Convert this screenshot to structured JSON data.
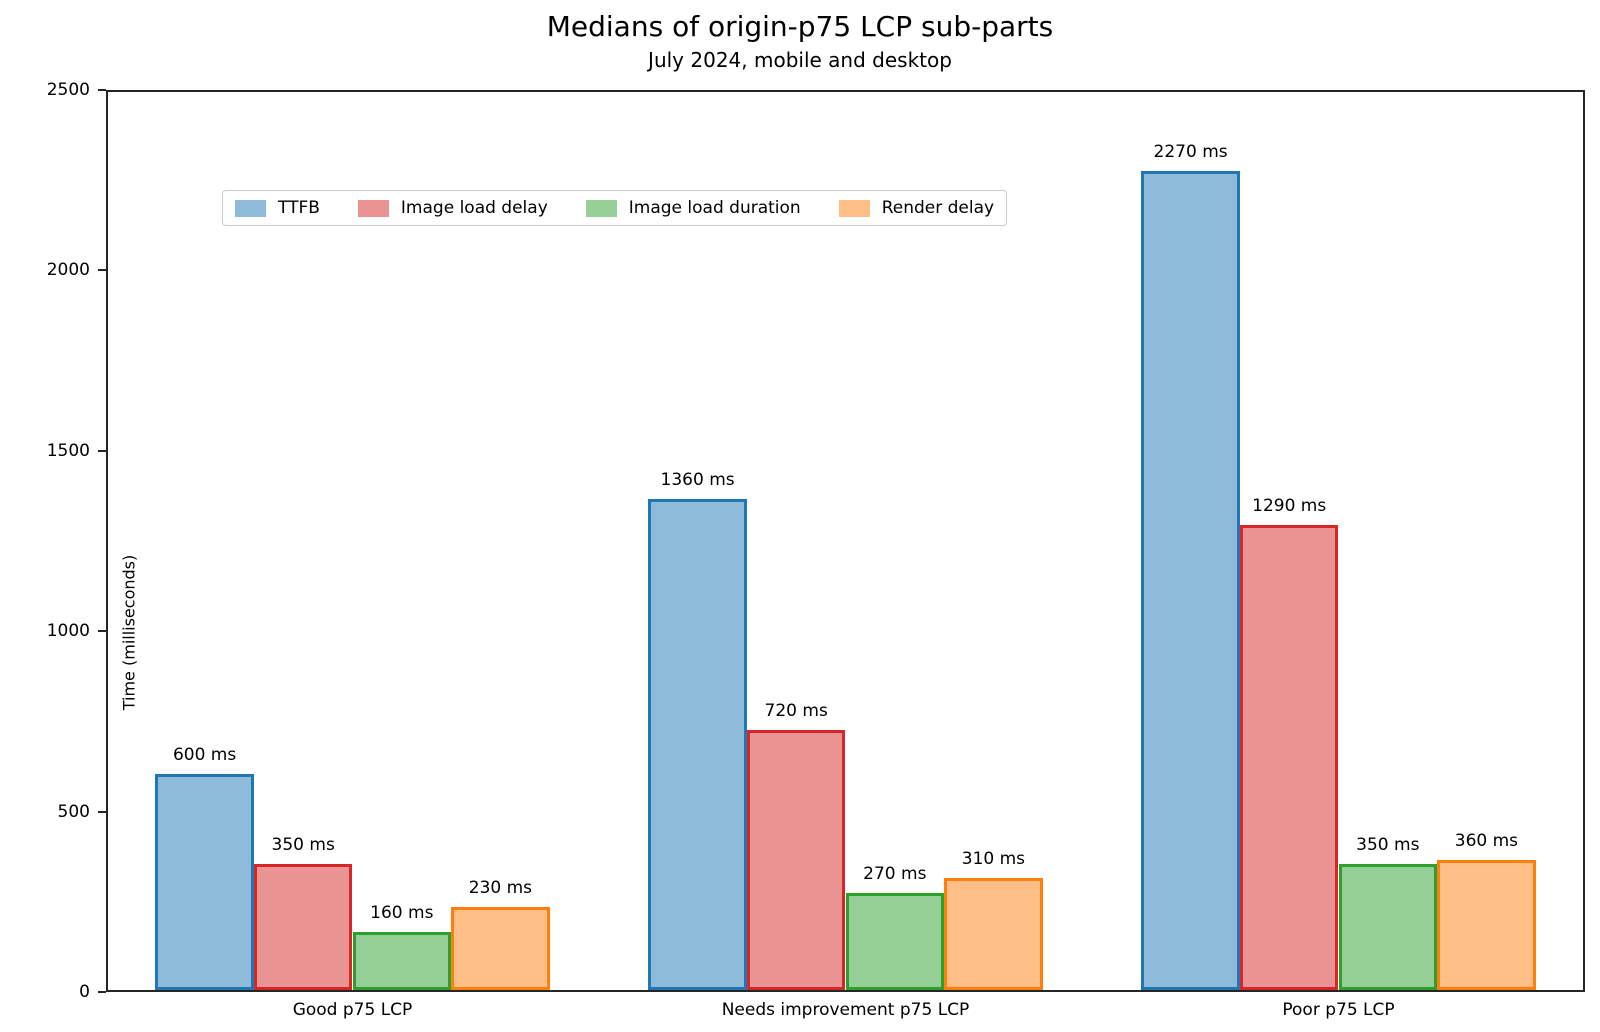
{
  "title": "Medians of origin-p75 LCP sub-parts",
  "subtitle": "July 2024, mobile and desktop",
  "chart_data": {
    "type": "bar",
    "title": "Medians of origin-p75 LCP sub-parts",
    "subtitle": "July 2024, mobile and desktop",
    "categories": [
      "Good p75 LCP",
      "Needs improvement p75 LCP",
      "Poor p75 LCP"
    ],
    "series": [
      {
        "name": "TTFB",
        "values": [
          600,
          1360,
          2270
        ],
        "value_labels": [
          "600 ms",
          "1360 ms",
          "2270 ms"
        ],
        "fill_color": "#8fbbda",
        "edge_color": "#1f77b4"
      },
      {
        "name": "Image load delay",
        "values": [
          350,
          720,
          1290
        ],
        "value_labels": [
          "350 ms",
          "720 ms",
          "1290 ms"
        ],
        "fill_color": "#ea9393",
        "edge_color": "#d62728"
      },
      {
        "name": "Image load duration",
        "values": [
          160,
          270,
          350
        ],
        "value_labels": [
          "160 ms",
          "270 ms",
          "350 ms"
        ],
        "fill_color": "#95cf95",
        "edge_color": "#2ca02c"
      },
      {
        "name": "Render delay",
        "values": [
          230,
          310,
          360
        ],
        "value_labels": [
          "230 ms",
          "310 ms",
          "360 ms"
        ],
        "fill_color": "#ffbf86",
        "edge_color": "#ff7f0e"
      }
    ],
    "xlabel": "",
    "ylabel": "Time (milliseconds)",
    "ylim": [
      0,
      2500
    ],
    "yticks": [
      0,
      500,
      1000,
      1500,
      2000,
      2500
    ],
    "ytick_labels": [
      "0",
      "500",
      "1000",
      "1500",
      "2000",
      "2500"
    ],
    "grid": false,
    "legend_position": "upper left"
  }
}
